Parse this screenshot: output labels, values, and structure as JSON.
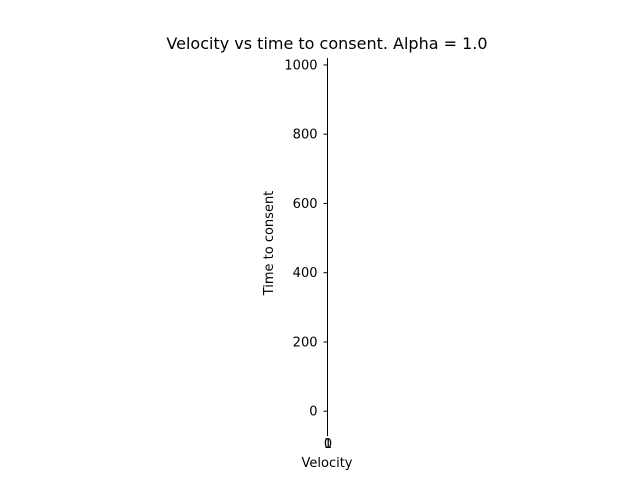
{
  "chart_data": {
    "type": "line",
    "title": "Velocity vs time to consent. Alpha = 1.0",
    "xlabel": "Velocity",
    "ylabel": "Time to consent",
    "x_ticks": [
      0,
      1
    ],
    "x_tick_labels": [
      "0",
      "1"
    ],
    "y_ticks": [
      0,
      200,
      400,
      600,
      800,
      1000
    ],
    "y_tick_labels": [
      "0",
      "200",
      "400",
      "600",
      "800",
      "1000"
    ],
    "ylim": [
      -60,
      1020
    ],
    "series": [],
    "grid": false,
    "legend": false,
    "colors": {
      "axis": "#000000",
      "background": "#ffffff"
    }
  }
}
